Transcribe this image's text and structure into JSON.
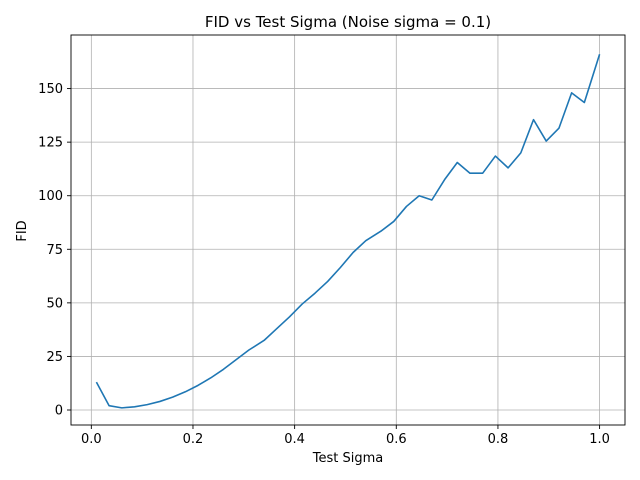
{
  "chart_data": {
    "type": "line",
    "title": "FID vs Test Sigma (Noise sigma = 0.1)",
    "xlabel": "Test Sigma",
    "ylabel": "FID",
    "xlim": [
      -0.04,
      1.05
    ],
    "ylim": [
      -7,
      175
    ],
    "xticks": [
      0.0,
      0.2,
      0.4,
      0.6,
      0.8,
      1.0
    ],
    "xtick_labels": [
      "0.0",
      "0.2",
      "0.4",
      "0.6",
      "0.8",
      "1.0"
    ],
    "yticks": [
      0,
      25,
      50,
      75,
      100,
      125,
      150
    ],
    "ytick_labels": [
      "0",
      "25",
      "50",
      "75",
      "100",
      "125",
      "150"
    ],
    "grid": true,
    "line_color": "#1f77b4",
    "series": [
      {
        "x": [
          0.01,
          0.035,
          0.06,
          0.085,
          0.11,
          0.135,
          0.16,
          0.185,
          0.21,
          0.235,
          0.26,
          0.285,
          0.31,
          0.34,
          0.365,
          0.39,
          0.415,
          0.44,
          0.465,
          0.49,
          0.515,
          0.54,
          0.57,
          0.595,
          0.62,
          0.645,
          0.67,
          0.695,
          0.72,
          0.745,
          0.77,
          0.795,
          0.82,
          0.845,
          0.87,
          0.895,
          0.92,
          0.945,
          0.97,
          1.0
        ],
        "y": [
          13,
          2,
          1,
          1.5,
          2.5,
          4,
          6,
          8.5,
          11.5,
          15,
          19,
          23.5,
          28,
          32.5,
          38,
          43.5,
          49.5,
          54.5,
          60,
          66.5,
          73.5,
          79,
          83.5,
          88,
          95,
          100,
          98,
          107.5,
          115.5,
          110.5,
          110.5,
          118.5,
          113,
          120,
          135.5,
          125.5,
          131.5,
          148,
          143.5,
          166
        ]
      }
    ]
  }
}
